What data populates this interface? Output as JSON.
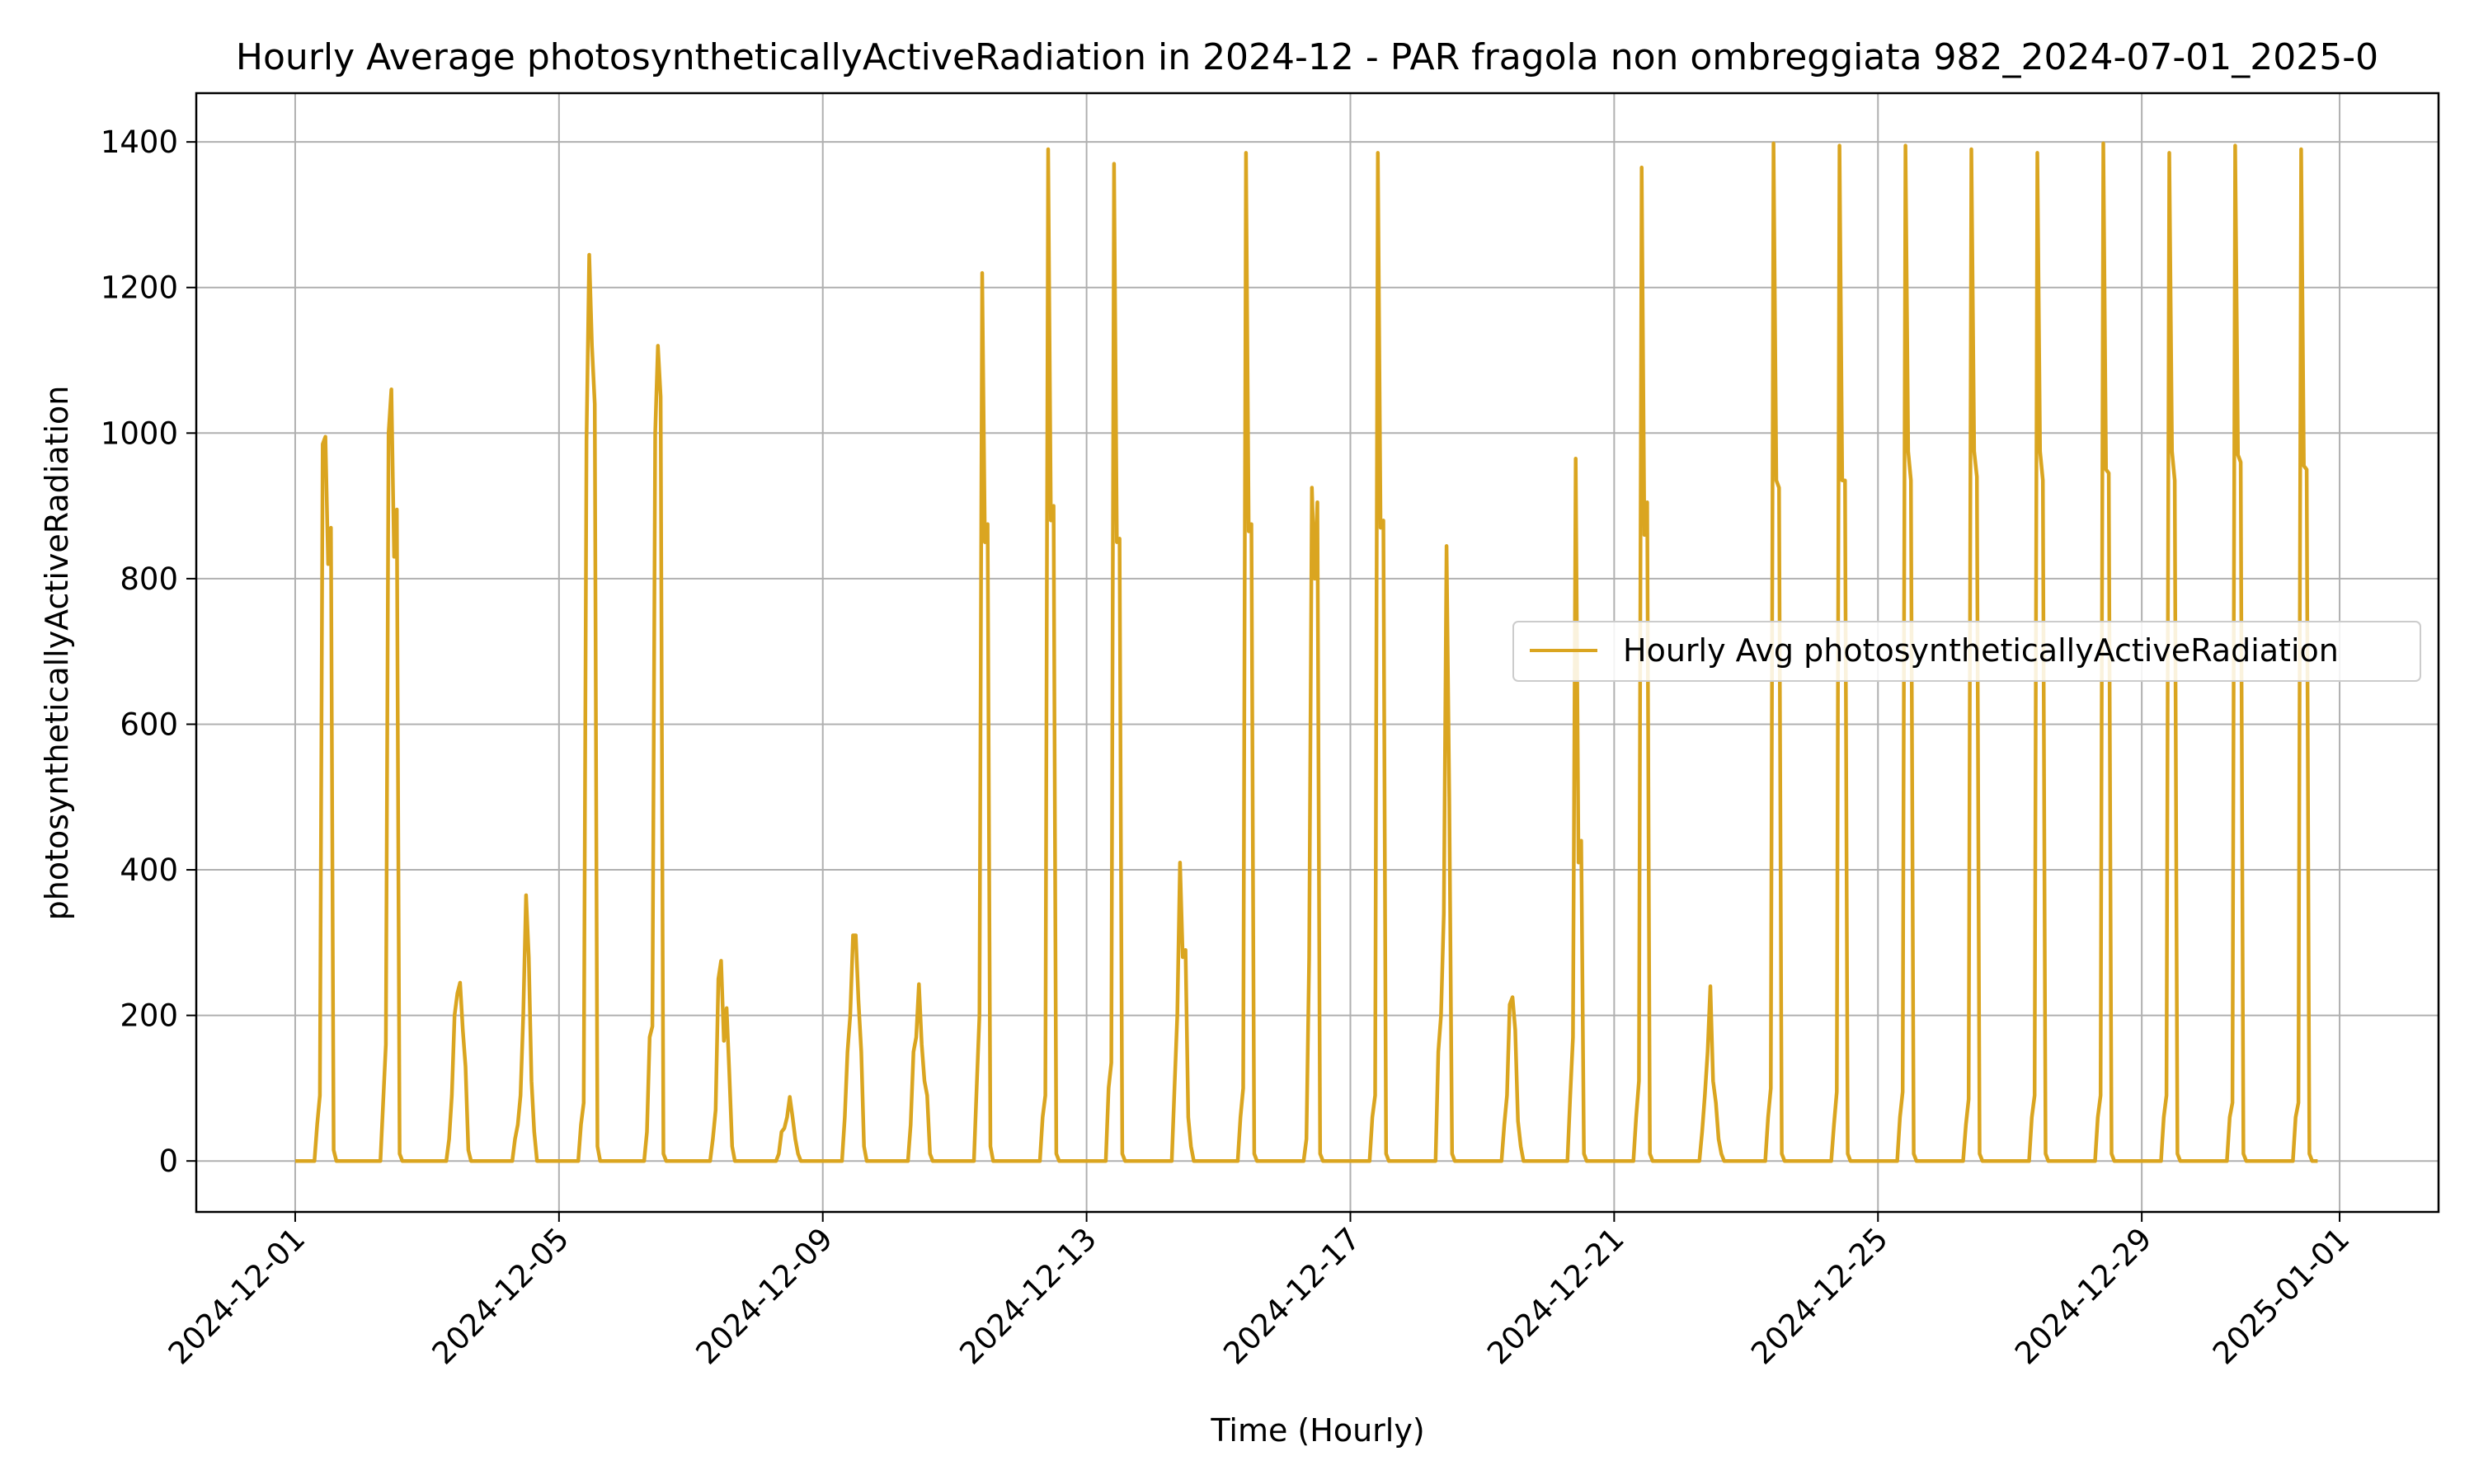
{
  "chart_data": {
    "type": "line",
    "title": "Hourly Average photosyntheticallyActiveRadiation in 2024-12 - PAR fragola non ombreggiata 982_2024-07-01_2025-0",
    "xlabel": "Time (Hourly)",
    "ylabel": "photosyntheticallyActiveRadiation",
    "x_range": [
      "2024-11-29T12:00",
      "2025-01-02T12:00"
    ],
    "ylim": [
      -70,
      1467
    ],
    "x_ticks": [
      "2024-12-01",
      "2024-12-05",
      "2024-12-09",
      "2024-12-13",
      "2024-12-17",
      "2024-12-21",
      "2024-12-25",
      "2024-12-29",
      "2025-01-01"
    ],
    "y_ticks": [
      0,
      200,
      400,
      600,
      800,
      1000,
      1200,
      1400
    ],
    "grid": true,
    "legend_position": "center-right",
    "series": [
      {
        "name": "Hourly Avg photosyntheticallyActiveRadiation",
        "color": "#DAA520",
        "start": "2024-12-01T00:00",
        "step_hours": 1,
        "daily_hour_offset": 6,
        "values": [
          [
            0,
            0,
            50,
            90,
            985,
            995,
            820,
            870,
            15,
            0,
            0,
            0,
            0,
            0,
            0,
            0,
            0,
            0
          ],
          [
            0,
            0,
            80,
            160,
            1000,
            1060,
            830,
            895,
            10,
            0,
            0,
            0,
            0,
            0,
            0,
            0,
            0,
            0
          ],
          [
            0,
            0,
            30,
            90,
            200,
            230,
            245,
            180,
            130,
            15,
            0,
            0,
            0,
            0,
            0,
            0,
            0,
            0
          ],
          [
            0,
            0,
            30,
            50,
            90,
            200,
            365,
            280,
            110,
            40,
            0,
            0,
            0,
            0,
            0,
            0,
            0,
            0
          ],
          [
            0,
            0,
            50,
            80,
            990,
            1245,
            1120,
            1040,
            20,
            0,
            0,
            0,
            0,
            0,
            0,
            0,
            0,
            0
          ],
          [
            0,
            0,
            40,
            170,
            185,
            1000,
            1120,
            1050,
            10,
            0,
            0,
            0,
            0,
            0,
            0,
            0,
            0,
            0
          ],
          [
            0,
            0,
            30,
            70,
            250,
            275,
            165,
            210,
            120,
            20,
            0,
            0,
            0,
            0,
            0,
            0,
            0,
            0
          ],
          [
            0,
            0,
            10,
            40,
            45,
            60,
            88,
            60,
            30,
            10,
            0,
            0,
            0,
            0,
            0,
            0,
            0,
            0
          ],
          [
            0,
            0,
            60,
            150,
            200,
            310,
            310,
            220,
            150,
            20,
            0,
            0,
            0,
            0,
            0,
            0,
            0,
            0
          ],
          [
            0,
            0,
            50,
            150,
            170,
            243,
            160,
            110,
            90,
            10,
            0,
            0,
            0,
            0,
            0,
            0,
            0,
            0
          ],
          [
            0,
            0,
            100,
            200,
            1220,
            850,
            875,
            20,
            0,
            0,
            0,
            0,
            0,
            0,
            0,
            0,
            0,
            0
          ],
          [
            0,
            0,
            60,
            90,
            1390,
            880,
            900,
            10,
            0,
            0,
            0,
            0,
            0,
            0,
            0,
            0,
            0,
            0
          ],
          [
            0,
            0,
            100,
            135,
            1370,
            850,
            855,
            10,
            0,
            0,
            0,
            0,
            0,
            0,
            0,
            0,
            0,
            0
          ],
          [
            0,
            0,
            100,
            200,
            410,
            280,
            290,
            60,
            20,
            0,
            0,
            0,
            0,
            0,
            0,
            0,
            0,
            0
          ],
          [
            0,
            0,
            60,
            100,
            1385,
            865,
            875,
            10,
            0,
            0,
            0,
            0,
            0,
            0,
            0,
            0,
            0,
            0
          ],
          [
            0,
            0,
            30,
            280,
            925,
            800,
            905,
            10,
            0,
            0,
            0,
            0,
            0,
            0,
            0,
            0,
            0,
            0
          ],
          [
            0,
            0,
            60,
            90,
            1385,
            870,
            880,
            10,
            0,
            0,
            0,
            0,
            0,
            0,
            0,
            0,
            0,
            0
          ],
          [
            0,
            0,
            150,
            200,
            340,
            845,
            500,
            10,
            0,
            0,
            0,
            0,
            0,
            0,
            0,
            0,
            0,
            0
          ],
          [
            0,
            0,
            50,
            90,
            215,
            225,
            180,
            55,
            20,
            0,
            0,
            0,
            0,
            0,
            0,
            0,
            0,
            0
          ],
          [
            0,
            0,
            90,
            170,
            965,
            410,
            440,
            10,
            0,
            0,
            0,
            0,
            0,
            0,
            0,
            0,
            0,
            0
          ],
          [
            0,
            0,
            60,
            110,
            1365,
            860,
            905,
            10,
            0,
            0,
            0,
            0,
            0,
            0,
            0,
            0,
            0,
            0
          ],
          [
            0,
            0,
            40,
            90,
            150,
            240,
            110,
            80,
            30,
            10,
            0,
            0,
            0,
            0,
            0,
            0,
            0,
            0
          ],
          [
            0,
            0,
            60,
            100,
            1398,
            935,
            925,
            10,
            0,
            0,
            0,
            0,
            0,
            0,
            0,
            0,
            0,
            0
          ],
          [
            0,
            0,
            50,
            95,
            1395,
            935,
            935,
            10,
            0,
            0,
            0,
            0,
            0,
            0,
            0,
            0,
            0,
            0
          ],
          [
            0,
            0,
            60,
            95,
            1395,
            975,
            935,
            10,
            0,
            0,
            0,
            0,
            0,
            0,
            0,
            0,
            0,
            0
          ],
          [
            0,
            0,
            50,
            85,
            1390,
            975,
            940,
            10,
            0,
            0,
            0,
            0,
            0,
            0,
            0,
            0,
            0,
            0
          ],
          [
            0,
            0,
            60,
            90,
            1385,
            975,
            935,
            10,
            0,
            0,
            0,
            0,
            0,
            0,
            0,
            0,
            0,
            0
          ],
          [
            0,
            0,
            60,
            90,
            1398,
            950,
            945,
            10,
            0,
            0,
            0,
            0,
            0,
            0,
            0,
            0,
            0,
            0
          ],
          [
            0,
            0,
            60,
            90,
            1385,
            975,
            935,
            10,
            0,
            0,
            0,
            0,
            0,
            0,
            0,
            0,
            0,
            0
          ],
          [
            0,
            0,
            60,
            80,
            1395,
            970,
            960,
            10,
            0,
            0,
            0,
            0,
            0,
            0,
            0,
            0,
            0,
            0
          ],
          [
            0,
            0,
            60,
            80,
            1390,
            955,
            950,
            10,
            0,
            0,
            0
          ]
        ]
      }
    ]
  }
}
